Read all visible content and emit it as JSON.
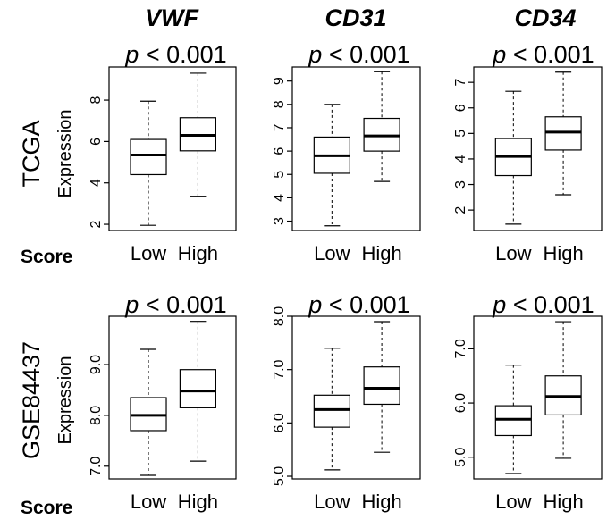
{
  "figure": {
    "row_labels": [
      "TCGA",
      "GSE84437"
    ],
    "score_label": "Score",
    "y_axis_label": "Expression"
  },
  "chart_data": [
    {
      "type": "box",
      "dataset": "TCGA",
      "title": "VWF",
      "pvalue_text": "< 0.001",
      "pvalue_symbol": "p",
      "categories": [
        "Low",
        "High"
      ],
      "ylim": [
        1.7,
        9.6
      ],
      "yticks": [
        2,
        4,
        6,
        8
      ],
      "boxes": [
        {
          "category": "Low",
          "min": 1.95,
          "q1": 4.4,
          "median": 5.35,
          "q3": 6.1,
          "max": 7.95
        },
        {
          "category": "High",
          "min": 3.35,
          "q1": 5.55,
          "median": 6.3,
          "q3": 7.15,
          "max": 9.3
        }
      ]
    },
    {
      "type": "box",
      "dataset": "TCGA",
      "title": "CD31",
      "pvalue_text": "< 0.001",
      "pvalue_symbol": "p",
      "categories": [
        "Low",
        "High"
      ],
      "ylim": [
        2.6,
        9.6
      ],
      "yticks": [
        3,
        4,
        5,
        6,
        7,
        8,
        9
      ],
      "boxes": [
        {
          "category": "Low",
          "min": 2.8,
          "q1": 5.05,
          "median": 5.8,
          "q3": 6.6,
          "max": 8.0
        },
        {
          "category": "High",
          "min": 4.7,
          "q1": 6.0,
          "median": 6.65,
          "q3": 7.4,
          "max": 9.4
        }
      ]
    },
    {
      "type": "box",
      "dataset": "TCGA",
      "title": "CD34",
      "pvalue_text": "< 0.001",
      "pvalue_symbol": "p",
      "categories": [
        "Low",
        "High"
      ],
      "ylim": [
        1.2,
        7.6
      ],
      "yticks": [
        2,
        3,
        4,
        5,
        6,
        7
      ],
      "boxes": [
        {
          "category": "Low",
          "min": 1.45,
          "q1": 3.35,
          "median": 4.1,
          "q3": 4.8,
          "max": 6.65
        },
        {
          "category": "High",
          "min": 2.6,
          "q1": 4.35,
          "median": 5.05,
          "q3": 5.65,
          "max": 7.4
        }
      ]
    },
    {
      "type": "box",
      "dataset": "GSE84437",
      "title": "",
      "pvalue_text": "< 0.001",
      "pvalue_symbol": "p",
      "categories": [
        "Low",
        "High"
      ],
      "ylim": [
        6.75,
        9.95
      ],
      "yticks": [
        7.0,
        8.0,
        9.0
      ],
      "ytick_labels": [
        "7.0",
        "8.0",
        "9.0"
      ],
      "boxes": [
        {
          "category": "Low",
          "min": 6.82,
          "q1": 7.7,
          "median": 8.0,
          "q3": 8.35,
          "max": 9.3
        },
        {
          "category": "High",
          "min": 7.1,
          "q1": 8.15,
          "median": 8.48,
          "q3": 8.9,
          "max": 9.85
        }
      ]
    },
    {
      "type": "box",
      "dataset": "GSE84437",
      "title": "",
      "pvalue_text": "< 0.001",
      "pvalue_symbol": "p",
      "categories": [
        "Low",
        "High"
      ],
      "ylim": [
        4.95,
        8.0
      ],
      "yticks": [
        5.0,
        6.0,
        7.0,
        8.0
      ],
      "ytick_labels": [
        "5.0",
        "6.0",
        "7.0",
        "8.0"
      ],
      "boxes": [
        {
          "category": "Low",
          "min": 5.12,
          "q1": 5.92,
          "median": 6.25,
          "q3": 6.52,
          "max": 7.4
        },
        {
          "category": "High",
          "min": 5.45,
          "q1": 6.35,
          "median": 6.65,
          "q3": 7.05,
          "max": 7.9
        }
      ]
    },
    {
      "type": "box",
      "dataset": "GSE84437",
      "title": "",
      "pvalue_text": "< 0.001",
      "pvalue_symbol": "p",
      "categories": [
        "Low",
        "High"
      ],
      "ylim": [
        4.6,
        7.6
      ],
      "yticks": [
        5.0,
        6.0,
        7.0
      ],
      "ytick_labels": [
        "5.0",
        "6.0",
        "7.0"
      ],
      "boxes": [
        {
          "category": "Low",
          "min": 4.7,
          "q1": 5.4,
          "median": 5.7,
          "q3": 5.95,
          "max": 6.7
        },
        {
          "category": "High",
          "min": 4.98,
          "q1": 5.78,
          "median": 6.12,
          "q3": 6.5,
          "max": 7.5
        }
      ]
    }
  ]
}
